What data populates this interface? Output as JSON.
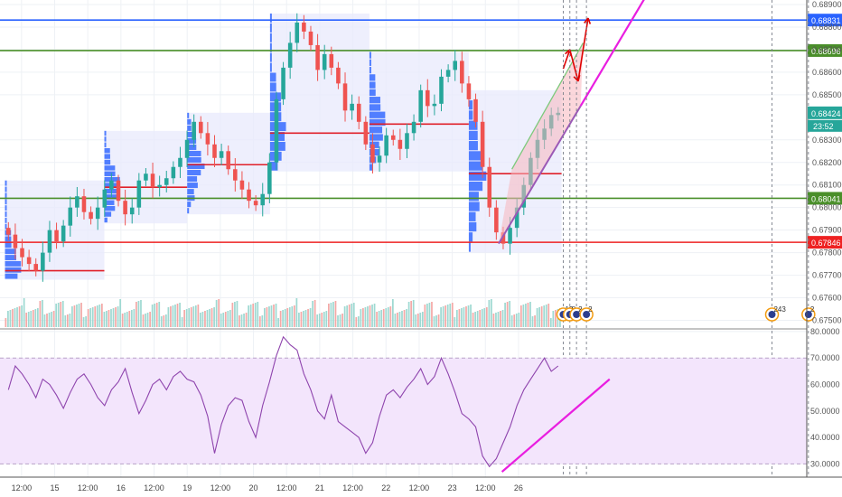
{
  "chart_data": {
    "type": "line",
    "price_panel": {
      "ylim": [
        0.6747,
        0.6892
      ],
      "y_ticks": [
        "0.67500",
        "0.67600",
        "0.67700",
        "0.67800",
        "0.67900",
        "0.68000",
        "0.68100",
        "0.68200",
        "0.68300",
        "0.68500",
        "0.68600",
        "0.68700",
        "0.68800",
        "0.68900"
      ],
      "current_price_label": "0.68424",
      "countdown_label": "23:52",
      "horizontal_levels": [
        {
          "value": 0.68831,
          "label": "0.68831",
          "color": "#2962ff"
        },
        {
          "value": 0.68696,
          "label": "0.68696",
          "color": "#4a8f2a"
        },
        {
          "value": 0.68041,
          "label": "0.68041",
          "color": "#4a8f2a"
        },
        {
          "value": 0.67846,
          "label": "0.67846",
          "color": "#ee2222"
        }
      ],
      "volume_profile_poc": [
        {
          "x_start": 0.0,
          "x_end": 3.0,
          "value": 0.6772
        },
        {
          "x_start": 3.0,
          "x_end": 5.5,
          "value": 0.6809
        },
        {
          "x_start": 5.5,
          "x_end": 8.0,
          "value": 0.6819
        },
        {
          "x_start": 8.0,
          "x_end": 11.0,
          "value": 0.6833
        },
        {
          "x_start": 11.0,
          "x_end": 14.0,
          "value": 0.6837
        },
        {
          "x_start": 14.0,
          "x_end": 16.8,
          "value": 0.6815
        }
      ],
      "close_series": [
        0.6788,
        0.6782,
        0.6778,
        0.6775,
        0.6772,
        0.678,
        0.679,
        0.6785,
        0.6792,
        0.68,
        0.6805,
        0.6798,
        0.6795,
        0.68,
        0.6808,
        0.6812,
        0.6803,
        0.6797,
        0.68,
        0.6812,
        0.6815,
        0.6809,
        0.681,
        0.6813,
        0.6818,
        0.6822,
        0.683,
        0.6838,
        0.6833,
        0.6828,
        0.6822,
        0.6825,
        0.6817,
        0.6812,
        0.6808,
        0.6803,
        0.6801,
        0.6806,
        0.682,
        0.6848,
        0.6862,
        0.6873,
        0.6882,
        0.6878,
        0.6872,
        0.6861,
        0.6868,
        0.6862,
        0.6855,
        0.6843,
        0.6846,
        0.6838,
        0.6828,
        0.682,
        0.6823,
        0.6832,
        0.683,
        0.6826,
        0.6833,
        0.6838,
        0.6852,
        0.6845,
        0.6846,
        0.6858,
        0.6861,
        0.6865,
        0.6855,
        0.6848,
        0.6838,
        0.6818,
        0.68,
        0.6789,
        0.6784,
        0.6791,
        0.68,
        0.681,
        0.6822,
        0.683,
        0.6835,
        0.6841,
        0.6842
      ],
      "forecast_arrows": [
        {
          "from": [
            16.85,
            0.68615
          ],
          "to": [
            17.05,
            0.687
          ]
        },
        {
          "from": [
            17.05,
            0.687
          ],
          "to": [
            17.3,
            0.6856
          ]
        },
        {
          "from": [
            17.3,
            0.6856
          ],
          "to": [
            17.6,
            0.6884
          ]
        }
      ],
      "channel_upper": [
        [
          15.3,
          0.6817
        ],
        [
          17.45,
          0.6873
        ]
      ],
      "channel_lower": [
        [
          14.9,
          0.6784
        ],
        [
          19.4,
          0.6895
        ]
      ],
      "events": [
        {
          "x": 16.85,
          "label": "13"
        },
        {
          "x": 17.05,
          "label": "8"
        },
        {
          "x": 17.25,
          "label": "2"
        },
        {
          "x": 17.55,
          "label": "2"
        },
        {
          "x": 23.15,
          "label": "243"
        },
        {
          "x": 24.25,
          "label": "2"
        }
      ]
    },
    "rsi_panel": {
      "ylim": [
        25,
        81
      ],
      "y_ticks": [
        "30.0000",
        "40.0000",
        "50.0000",
        "60.0000",
        "70.0000",
        "80.0000"
      ],
      "overbought": 70,
      "oversold": 30,
      "series": [
        58,
        67,
        64,
        60,
        55,
        62,
        60,
        56,
        51,
        57,
        62,
        64,
        60,
        55,
        52,
        58,
        61,
        66,
        57,
        49,
        54,
        60,
        62,
        58,
        63,
        65,
        62,
        61,
        56,
        48,
        34,
        45,
        52,
        55,
        54,
        46,
        40,
        52,
        61,
        71,
        78,
        75,
        73,
        64,
        58,
        50,
        47,
        56,
        46,
        44,
        42,
        40,
        34,
        38,
        48,
        56,
        58,
        55,
        59,
        62,
        66,
        60,
        63,
        70,
        64,
        57,
        49,
        47,
        44,
        33,
        29,
        32,
        38,
        44,
        52,
        58,
        62,
        66,
        70,
        65,
        67
      ],
      "trendline": [
        [
          15.0,
          27.0
        ],
        [
          18.25,
          62.0
        ]
      ]
    },
    "x_axis": {
      "xlim": [
        -0.15,
        24.2
      ],
      "tick_labels": [
        {
          "x": 0.5,
          "label": "12:00"
        },
        {
          "x": 1.5,
          "label": "15"
        },
        {
          "x": 2.5,
          "label": "12:00"
        },
        {
          "x": 3.5,
          "label": "16"
        },
        {
          "x": 4.5,
          "label": "12:00"
        },
        {
          "x": 5.5,
          "label": "19"
        },
        {
          "x": 6.5,
          "label": "12:00"
        },
        {
          "x": 7.5,
          "label": "20"
        },
        {
          "x": 8.5,
          "label": "12:00"
        },
        {
          "x": 9.5,
          "label": "21"
        },
        {
          "x": 10.5,
          "label": "12:00"
        },
        {
          "x": 11.5,
          "label": "22"
        },
        {
          "x": 12.5,
          "label": "12:00"
        },
        {
          "x": 13.5,
          "label": "23"
        },
        {
          "x": 14.5,
          "label": "12:00"
        },
        {
          "x": 15.5,
          "label": "26"
        }
      ]
    },
    "colors": {
      "up": "#26a69a",
      "down": "#ef5350",
      "rsi": "#8e44ad",
      "trend": "#e91ee0",
      "band": "#f3e5fc",
      "profile": "#2962ff"
    }
  }
}
